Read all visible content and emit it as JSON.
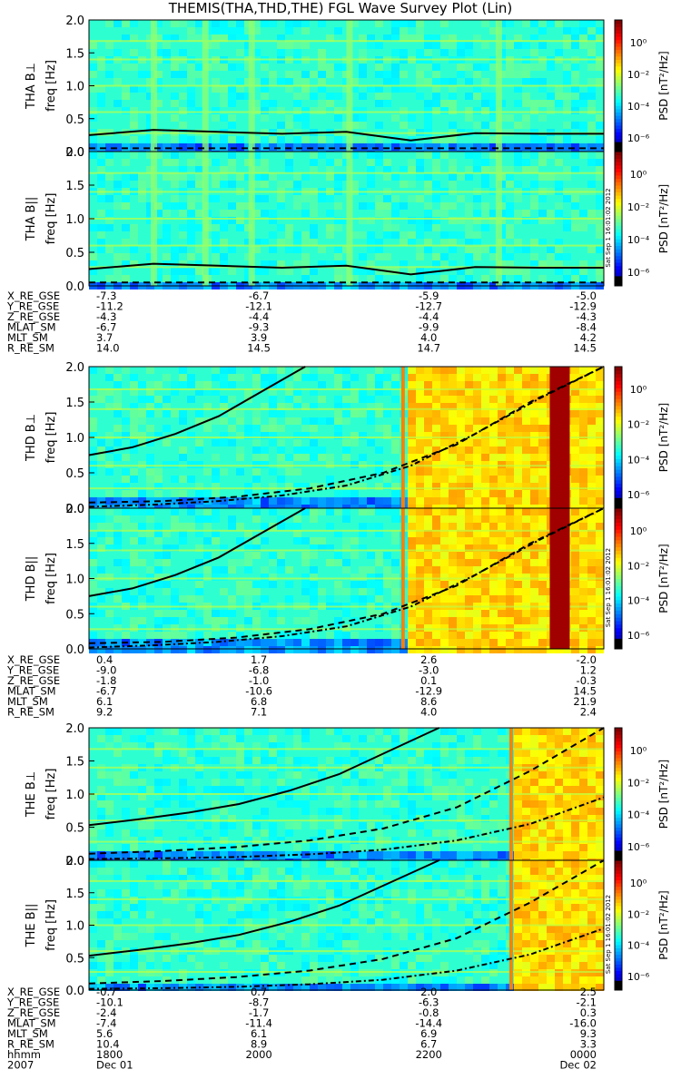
{
  "title": "THEMIS(THA,THD,THE) FGL Wave Survey Plot (Lin)",
  "stamp": "Sat Sep 1 16:01:02 2012",
  "colorbar": {
    "label": "PSD [nT²/Hz]",
    "ticks": [
      "10⁰",
      "10⁻²",
      "10⁻⁴",
      "10⁻⁶"
    ]
  },
  "freq_ticks": [
    "0.0",
    "0.5",
    "1.0",
    "1.5",
    "2.0"
  ],
  "chart_data": [
    {
      "type": "heatmap",
      "probe": "THA",
      "panels": [
        {
          "ylabel_line1": "THA B⊥",
          "ylabel_line2": "freq [Hz]"
        },
        {
          "ylabel_line1": "THA B||",
          "ylabel_line2": "freq [Hz]"
        }
      ],
      "ylim": [
        0,
        2
      ],
      "yscale": "linear",
      "zscale": "log",
      "zlim": [
        1e-06,
        10
      ],
      "event_fraction": null,
      "curves": {
        "solid": [
          0.25,
          0.33,
          0.3,
          0.27,
          0.3,
          0.17,
          0.28,
          0.27,
          0.27
        ],
        "dashed": [
          0.05,
          0.05,
          0.05,
          0.05,
          0.05,
          0.05,
          0.05,
          0.05,
          0.05
        ]
      },
      "ephemeris": [
        {
          "label": "X_RE_GSE",
          "values": [
            "-7.3",
            "-6.7",
            "-5.9",
            "-5.0"
          ]
        },
        {
          "label": "Y_RE_GSE",
          "values": [
            "-11.2",
            "-12.1",
            "-12.7",
            "-12.9"
          ]
        },
        {
          "label": "Z_RE_GSE",
          "values": [
            "-4.3",
            "-4.4",
            "-4.4",
            "-4.3"
          ]
        },
        {
          "label": "MLAT_SM",
          "values": [
            "-6.7",
            "-9.3",
            "-9.9",
            "-8.4"
          ]
        },
        {
          "label": "MLT_SM",
          "values": [
            "3.7",
            "3.9",
            "4.0",
            "4.2"
          ]
        },
        {
          "label": "R_RE_SM",
          "values": [
            "14.0",
            "14.5",
            "14.7",
            "14.5"
          ]
        }
      ]
    },
    {
      "type": "heatmap",
      "probe": "THD",
      "panels": [
        {
          "ylabel_line1": "THD B⊥",
          "ylabel_line2": "freq [Hz]"
        },
        {
          "ylabel_line1": "THD B||",
          "ylabel_line2": "freq [Hz]"
        }
      ],
      "ylim": [
        0,
        2
      ],
      "yscale": "linear",
      "zscale": "log",
      "zlim": [
        1e-06,
        10
      ],
      "event_fraction": 0.61,
      "curves": {
        "solid": [
          0.75,
          0.86,
          1.05,
          1.3,
          1.65,
          2.05
        ],
        "dashed": [
          0.08,
          0.1,
          0.16,
          0.28,
          0.5,
          0.9,
          1.5,
          2.05
        ],
        "dotdash": [
          0.02,
          0.05,
          0.1,
          0.18,
          0.32,
          0.6,
          1.05,
          1.55,
          2.05
        ]
      },
      "ephemeris": [
        {
          "label": "X_RE_GSE",
          "values": [
            "0.4",
            "1.7",
            "2.6",
            "-2.0"
          ]
        },
        {
          "label": "Y_RE_GSE",
          "values": [
            "-9.0",
            "-6.8",
            "-3.0",
            "1.2"
          ]
        },
        {
          "label": "Z_RE_GSE",
          "values": [
            "-1.8",
            "-1.0",
            "0.1",
            "-0.3"
          ]
        },
        {
          "label": "MLAT_SM",
          "values": [
            "-6.7",
            "-10.6",
            "-12.9",
            "14.5"
          ]
        },
        {
          "label": "MLT_SM",
          "values": [
            "6.1",
            "6.8",
            "8.6",
            "21.9"
          ]
        },
        {
          "label": "R_RE_SM",
          "values": [
            "9.2",
            "7.1",
            "4.0",
            "2.4"
          ]
        }
      ]
    },
    {
      "type": "heatmap",
      "probe": "THE",
      "panels": [
        {
          "ylabel_line1": "THE B⊥",
          "ylabel_line2": "freq [Hz]"
        },
        {
          "ylabel_line1": "THE B||",
          "ylabel_line2": "freq [Hz]"
        }
      ],
      "ylim": [
        0,
        2
      ],
      "yscale": "linear",
      "zscale": "log",
      "zlim": [
        1e-06,
        10
      ],
      "event_fraction": 0.82,
      "curves": {
        "solid": [
          0.53,
          0.62,
          0.72,
          0.85,
          1.05,
          1.3,
          1.65,
          2.05
        ],
        "dashed": [
          0.1,
          0.14,
          0.2,
          0.3,
          0.48,
          0.8,
          1.35,
          2.05
        ],
        "dotdash": [
          0.02,
          0.03,
          0.05,
          0.09,
          0.16,
          0.3,
          0.55,
          0.95
        ]
      },
      "ephemeris": [
        {
          "label": "X_RE_GSE",
          "values": [
            "-0.7",
            "0.7",
            "2.0",
            "2.5"
          ]
        },
        {
          "label": "Y_RE_GSE",
          "values": [
            "-10.1",
            "-8.7",
            "-6.3",
            "-2.1"
          ]
        },
        {
          "label": "Z_RE_GSE",
          "values": [
            "-2.4",
            "-1.7",
            "-0.8",
            "0.3"
          ]
        },
        {
          "label": "MLAT_SM",
          "values": [
            "-7.4",
            "-11.4",
            "-14.4",
            "-16.0"
          ]
        },
        {
          "label": "MLT_SM",
          "values": [
            "5.6",
            "6.1",
            "6.9",
            "9.3"
          ]
        },
        {
          "label": "R_RE_SM",
          "values": [
            "10.4",
            "8.9",
            "6.7",
            "3.3"
          ]
        },
        {
          "label": "hhmm",
          "values": [
            "1800",
            "2000",
            "2200",
            "0000"
          ]
        }
      ],
      "date_row": {
        "year": "2007",
        "start": "Dec 01",
        "end": "Dec 02"
      }
    }
  ]
}
